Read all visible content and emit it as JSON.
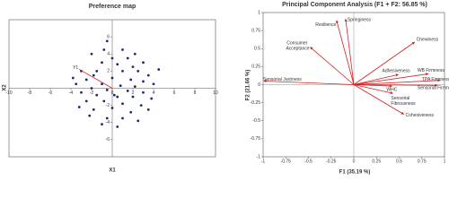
{
  "chart_data": [
    {
      "type": "scatter",
      "title": "Preference map",
      "xlabel": "X1",
      "ylabel": "X2",
      "xlim": [
        -10,
        10
      ],
      "ylim": [
        -8,
        8
      ],
      "xticks": [
        -10,
        -8,
        -6,
        -4,
        -2,
        0,
        2,
        4,
        6,
        8,
        10
      ],
      "yticks": [
        -6,
        -4,
        -2,
        2,
        4,
        6
      ],
      "series": [
        {
          "color": "#1f2a6e",
          "x": [
            -0.5,
            1,
            -2,
            0,
            1.5,
            3,
            -1,
            0.5,
            2,
            -3,
            -1.5,
            1,
            2.5,
            3.5,
            -2.5,
            0,
            1.8,
            3,
            -3.5,
            -1,
            0.8,
            2.2,
            4,
            -2,
            -0.5,
            1.5,
            3,
            -3,
            -1.5,
            0.5,
            2,
            3.8,
            -2.5,
            -0.8,
            1,
            2.8,
            -3.2,
            -1.8,
            0,
            1.8,
            3.5,
            -2.2,
            -0.5,
            1,
            2.5,
            -1,
            0.5,
            -1.8,
            0.2,
            4.5,
            -3.8,
            2.2,
            -0.8
          ],
          "y": [
            5.5,
            4.5,
            4,
            3.5,
            3.5,
            3,
            3,
            2.8,
            2.5,
            2,
            2,
            2,
            2,
            1.5,
            1,
            1.2,
            1,
            0.8,
            0.5,
            0.5,
            0.3,
            0.2,
            0.5,
            0,
            -0.2,
            -0.3,
            -0.5,
            -0.5,
            -0.8,
            -1,
            -1,
            -1.2,
            -1.5,
            -1.5,
            -1.8,
            -2,
            -2.2,
            -2.5,
            -2.3,
            -2.8,
            -2.5,
            -3.2,
            -3.5,
            -3.5,
            -3.8,
            -4.2,
            -4.5,
            1.5,
            -0.8,
            2.2,
            1.2,
            4,
            4.5
          ]
        }
      ],
      "vectors": [
        {
          "name": "Y1",
          "color": "#d62020",
          "x": -3.2,
          "y": 2.2
        }
      ]
    },
    {
      "type": "biplot",
      "title": "Principal Component Analysis  (F1 + F2: 56.85 %)",
      "xlabel": "F1 (35.19 %)",
      "ylabel": "F2 (21.66 %)",
      "xlim": [
        -1,
        1
      ],
      "ylim": [
        -1,
        1
      ],
      "xticks": [
        -1,
        -0.75,
        -0.5,
        -0.25,
        0,
        0.25,
        0.5,
        0.75,
        1
      ],
      "yticks": [
        -1,
        -0.75,
        -0.5,
        -0.25,
        0,
        0.25,
        0.5,
        0.75,
        1
      ],
      "color": "#d62020",
      "vectors": [
        {
          "name": "Resilience",
          "x": -0.19,
          "y": 0.89
        },
        {
          "name": "Springiness",
          "x": -0.09,
          "y": 0.91
        },
        {
          "name": "Consumer Acceptance",
          "x": -0.48,
          "y": 0.52
        },
        {
          "name": "Chewiness",
          "x": 0.67,
          "y": 0.59
        },
        {
          "name": "Adhesiveness",
          "x": 0.49,
          "y": 0.14
        },
        {
          "name": "WB Firmness",
          "x": 0.82,
          "y": 0.15
        },
        {
          "name": "TPA Firmness",
          "x": 0.95,
          "y": 0.06
        },
        {
          "name": "Sensorial Firmness",
          "x": 0.92,
          "y": -0.01
        },
        {
          "name": "WHC",
          "x": 0.42,
          "y": -0.02
        },
        {
          "name": "Sensorial Fibrousness",
          "x": 0.43,
          "y": -0.12
        },
        {
          "name": "Cohesiveness",
          "x": 0.55,
          "y": -0.41
        },
        {
          "name": "Sensorial Juiciness",
          "x": -0.99,
          "y": 0.05
        }
      ]
    }
  ]
}
